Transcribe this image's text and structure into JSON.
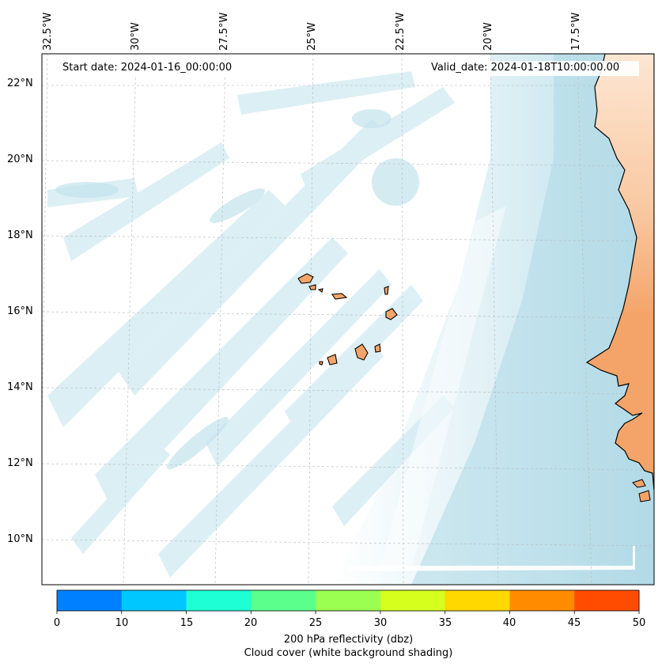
{
  "map": {
    "start_date_label": "Start date: 2024-01-16_00:00:00",
    "valid_date_label": "Valid_date: 2024-01-18T10:00:00.00",
    "longitude_labels": [
      "32.5°W",
      "30°W",
      "27.5°W",
      "25°W",
      "22.5°W",
      "20°W",
      "17.5°W"
    ],
    "latitude_labels": [
      "22°N",
      "20°N",
      "18°N",
      "16°N",
      "14°N",
      "12°N",
      "10°N"
    ],
    "colors": {
      "ocean_cloud_light": "#e6f4f8",
      "ocean_cloud": "#cde8f0",
      "ocean_cloud_dense": "#aed9e6",
      "land_light": "#fbd9bd",
      "land": "#f4a469",
      "coast": "#000000",
      "grid": "#b0b0b0"
    }
  },
  "colorbar": {
    "ticks": [
      "0",
      "10",
      "15",
      "20",
      "25",
      "30",
      "35",
      "40",
      "45",
      "50"
    ],
    "colors": [
      "#0080ff",
      "#00c8ff",
      "#1effd6",
      "#5aff8c",
      "#9aff50",
      "#d6ff1e",
      "#ffd800",
      "#ff8c00",
      "#ff4c00"
    ],
    "label_line1": "200 hPa reflectivity (dbz)",
    "label_line2": "Cloud cover (white background shading)"
  }
}
